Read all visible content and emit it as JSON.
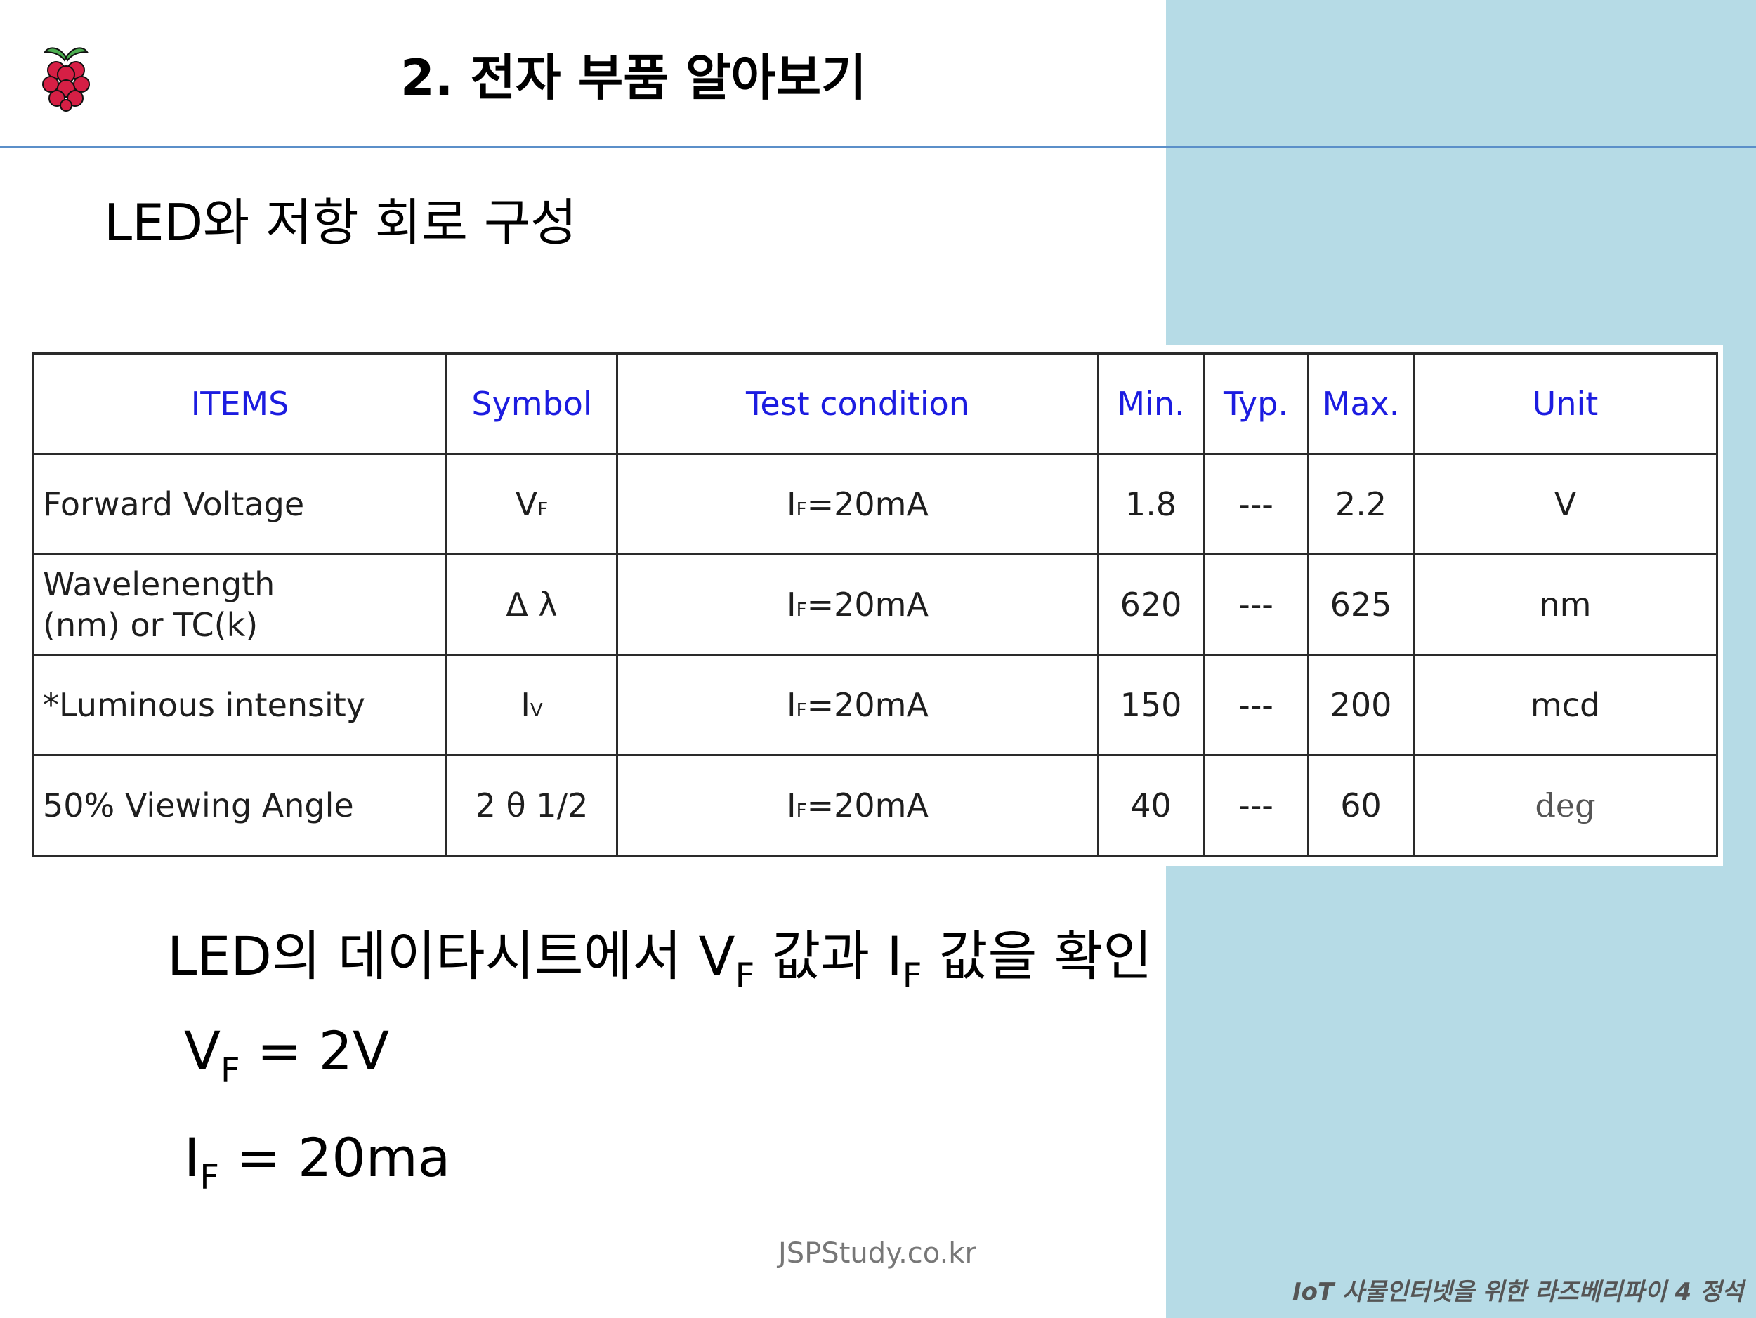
{
  "header": {
    "title": "2. 전자 부품 알아보기"
  },
  "subtitle": "LED와 저항 회로 구성",
  "table": {
    "headers": [
      "ITEMS",
      "Symbol",
      "Test condition",
      "Min.",
      "Typ.",
      "Max.",
      "Unit"
    ],
    "rows": [
      {
        "item": "Forward Voltage",
        "symbol_main": "V",
        "symbol_sub": "F",
        "cond_main": "I",
        "cond_sub": "F",
        "cond_rest": "=20mA",
        "min": "1.8",
        "typ": "---",
        "max": "2.2",
        "unit": "V"
      },
      {
        "item_line1": "Wavelenength",
        "item_line2": "(nm) or TC(k)",
        "symbol": "Δ λ",
        "cond_main": "I",
        "cond_sub": "F",
        "cond_rest": "=20mA",
        "min": "620",
        "typ": "---",
        "max": "625",
        "unit": "nm"
      },
      {
        "item": "*Luminous intensity",
        "symbol_main": "I",
        "symbol_sub": "V",
        "cond_main": "I",
        "cond_sub": "F",
        "cond_rest": "=20mA",
        "min": "150",
        "typ": "---",
        "max": "200",
        "unit": "mcd"
      },
      {
        "item": "50% Viewing Angle",
        "symbol": "2 θ 1/2",
        "cond_main": "I",
        "cond_sub": "F",
        "cond_rest": "=20mA",
        "min": "40",
        "typ": "---",
        "max": "60",
        "unit": "deg"
      }
    ]
  },
  "notes": {
    "line1_a": "LED의 데이타시트에서 V",
    "line1_sub1": "F",
    "line1_b": " 값과 I",
    "line1_sub2": "F",
    "line1_c": " 값을 확인",
    "vf_main": "V",
    "vf_sub": "F",
    "vf_rest": " = 2V",
    "if_main": "I",
    "if_sub": "F",
    "if_rest": "  = 20ma"
  },
  "footer": {
    "site": "JSPStudy.co.kr",
    "book": "IoT 사물인터넷을 위한 라즈베리파이 4 정석"
  },
  "colors": {
    "side_panel": "#b6dbe6",
    "rule": "#5b8fc9",
    "table_header": "#1c1ce0"
  },
  "icons": {
    "logo": "raspberry-pi-logo"
  }
}
